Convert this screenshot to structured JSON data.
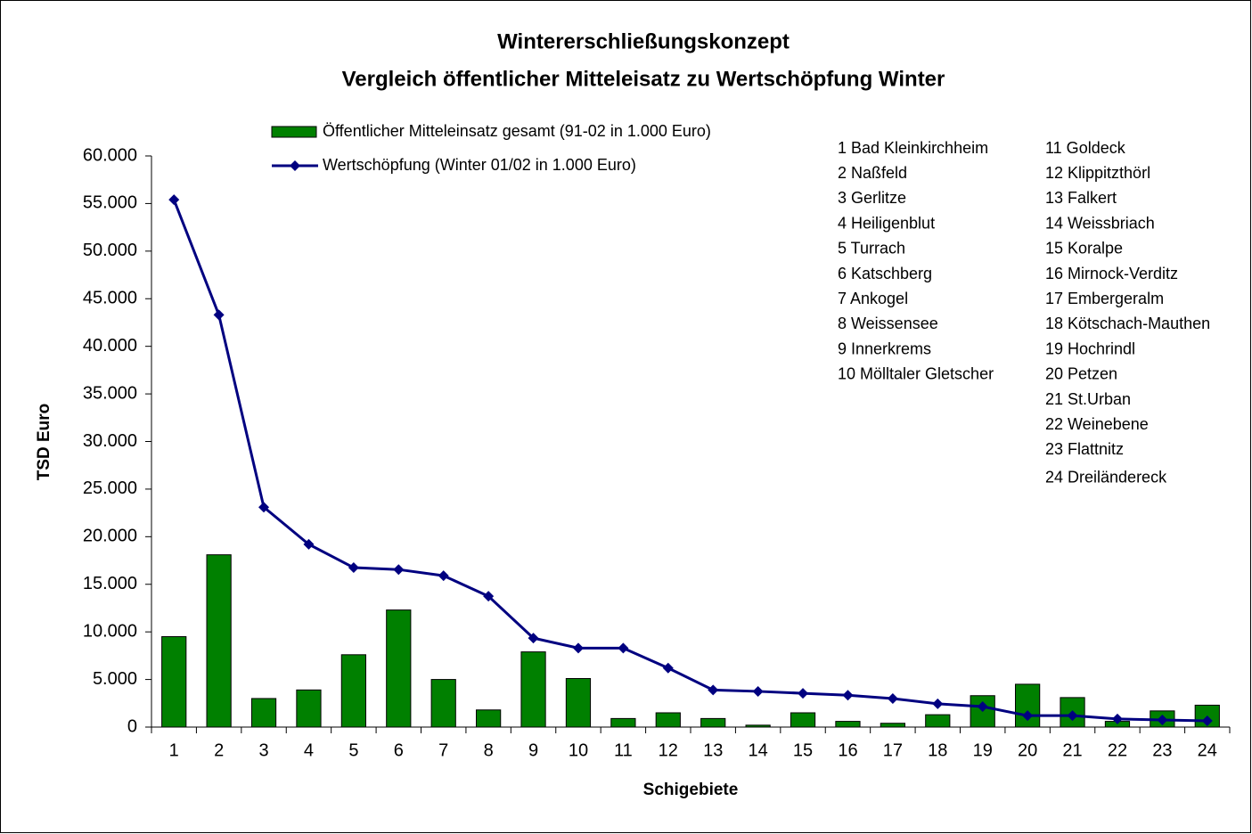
{
  "chart_data": {
    "type": "bar_line",
    "title": "Wintererschließungskonzept",
    "subtitle": "Vergleich öffentlicher Mitteleisatz zu Wertschöpfung Winter",
    "x_label": "Schigebiete",
    "y_label": "TSD Euro",
    "categories": [
      "1",
      "2",
      "3",
      "4",
      "5",
      "6",
      "7",
      "8",
      "9",
      "10",
      "11",
      "12",
      "13",
      "14",
      "15",
      "16",
      "17",
      "18",
      "19",
      "20",
      "21",
      "22",
      "23",
      "24"
    ],
    "series": [
      {
        "name": "Öffentlicher Mitteleinsatz gesamt (91-02 in 1.000 Euro)",
        "type": "bar",
        "color": "#008000",
        "values": [
          9500,
          18100,
          3000,
          3900,
          7600,
          12300,
          5000,
          1800,
          7900,
          5100,
          900,
          1500,
          900,
          200,
          1500,
          600,
          400,
          1300,
          3300,
          4500,
          3100,
          600,
          1700,
          2300
        ]
      },
      {
        "name": "Wertschöpfung (Winter 01/02 in 1.000 Euro)",
        "type": "line",
        "color": "#000080",
        "values": [
          55400,
          43300,
          23100,
          19200,
          16750,
          16550,
          15900,
          13750,
          9350,
          8300,
          8300,
          6200,
          3900,
          3750,
          3550,
          3350,
          3000,
          2450,
          2150,
          1200,
          1200,
          850,
          750,
          650
        ]
      }
    ],
    "ylim": [
      0,
      60000
    ],
    "yticks": [
      0,
      {
        "value": 5000,
        "label": "5.000"
      },
      {
        "value": 10000,
        "label": "10.000"
      },
      {
        "value": 15000,
        "label": "15.000"
      },
      {
        "value": 20000,
        "label": "20.000"
      },
      {
        "value": 25000,
        "label": "25.000"
      },
      {
        "value": 30000,
        "label": "30.000"
      },
      {
        "value": 35000,
        "label": "35.000"
      },
      {
        "value": 40000,
        "label": "40.000"
      },
      {
        "value": 45000,
        "label": "45.000"
      },
      {
        "value": 50000,
        "label": "50.000"
      },
      {
        "value": 55000,
        "label": "55.000"
      },
      {
        "value": 60000,
        "label": "60.000"
      }
    ],
    "annotations": [
      "1 Bad Kleinkirchheim",
      "2 Naßfeld",
      "3 Gerlitze",
      "4 Heiligenblut",
      "5 Turrach",
      "6 Katschberg",
      "7 Ankogel",
      "8 Weissensee",
      "9 Innerkrems",
      "10 Mölltaler Gletscher",
      "11 Goldeck",
      "12 Klippitzthörl",
      "13 Falkert",
      "14 Weissbriach",
      "15 Koralpe",
      "16 Mirnock-Verditz",
      "17 Embergeralm",
      "18 Kötschach-Mauthen",
      "19 Hochrindl",
      "20 Petzen",
      "21 St.Urban",
      "22 Weinebene",
      "23 Flattnitz",
      "24 Dreiländereck"
    ]
  }
}
